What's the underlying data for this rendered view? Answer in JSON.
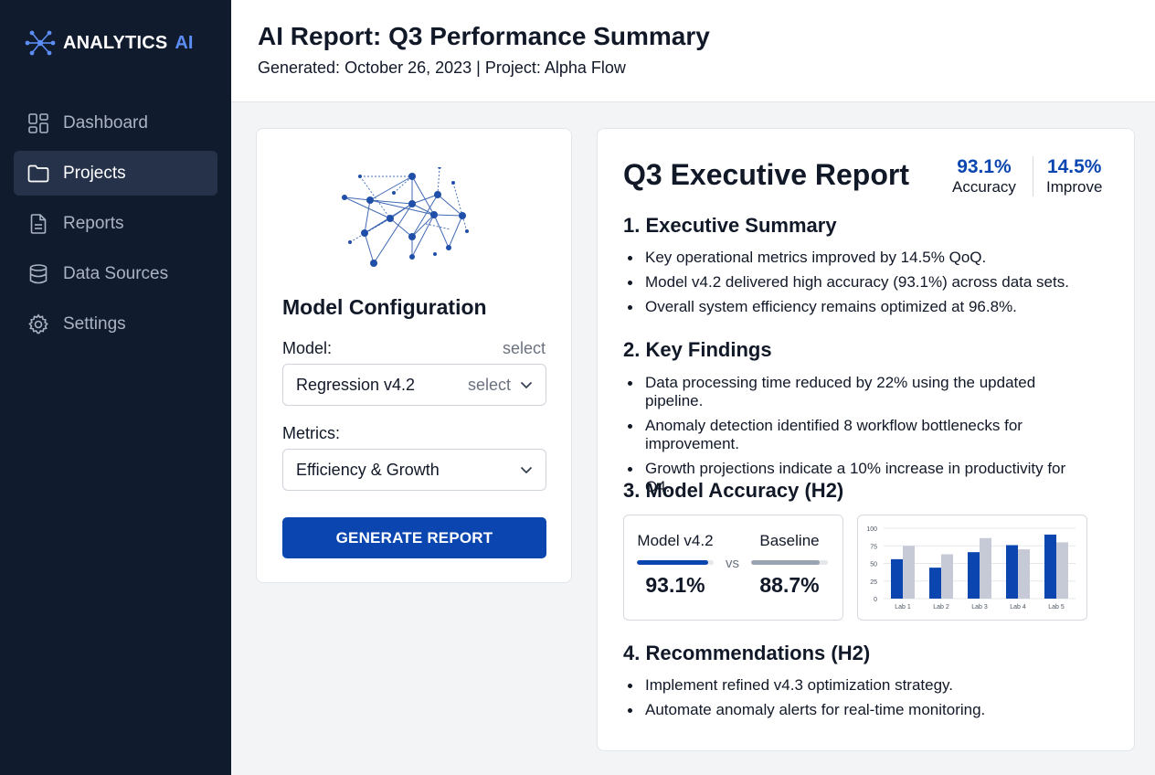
{
  "app": {
    "logo_text": "ANALYTICS",
    "logo_accent": "AI"
  },
  "sidebar": {
    "items": [
      {
        "label": "Dashboard",
        "icon": "dashboard-grid-icon",
        "active": false
      },
      {
        "label": "Projects",
        "icon": "folder-icon",
        "active": true
      },
      {
        "label": "Reports",
        "icon": "document-icon",
        "active": false
      },
      {
        "label": "Data Sources",
        "icon": "database-icon",
        "active": false
      },
      {
        "label": "Settings",
        "icon": "gear-icon",
        "active": false
      }
    ]
  },
  "header": {
    "title": "AI Report: Q3 Performance Summary",
    "subtitle": "Generated: October 26, 2023 | Project: Alpha Flow"
  },
  "config": {
    "title": "Model Configuration",
    "model_label": "Model:",
    "model_hint": "select",
    "model_value": "Regression v4.2",
    "model_select_hint": "select",
    "metrics_label": "Metrics:",
    "metrics_value": "Efficiency & Growth",
    "generate_label": "GENERATE REPORT"
  },
  "report": {
    "title": "Q3 Executive Report",
    "kpis": [
      {
        "value": "93.1%",
        "label": "Accuracy"
      },
      {
        "value": "14.5%",
        "label": "Improve"
      }
    ],
    "sections": {
      "summary_heading": "1. Executive Summary",
      "summary_items": [
        "Key operational metrics improved by 14.5% QoQ.",
        "Model v4.2 delivered high accuracy (93.1%) across data sets.",
        "Overall system efficiency remains optimized at 96.8%."
      ],
      "findings_heading": "2. Key Findings",
      "findings_items": [
        "Data processing time reduced by 22% using the updated pipeline.",
        "Anomaly detection identified 8 workflow bottlenecks for improvement.",
        "Growth projections indicate a 10% increase in productivity for Q4."
      ],
      "accuracy_heading": "3. Model Accuracy (H2)",
      "recommendations_heading": "4. Recommendations (H2)",
      "recommendations_items": [
        "Implement refined v4.3 optimization strategy.",
        "Automate anomaly alerts for real-time monitoring."
      ]
    },
    "accuracy_compare": {
      "model_name": "Model v4.2",
      "model_value": "93.1%",
      "model_fraction": 0.931,
      "baseline_name": "Baseline",
      "baseline_value": "88.7%",
      "baseline_fraction": 0.887,
      "vs_label": "vs"
    }
  },
  "colors": {
    "primary": "#0b46b0",
    "secondary": "#c6cad6",
    "sidebar_bg": "#111b2e"
  },
  "chart_data": {
    "type": "bar",
    "categories": [
      "Lab 1",
      "Lab 2",
      "Lab 3",
      "Lab 4",
      "Lab 5"
    ],
    "series": [
      {
        "values": [
          56,
          44,
          66,
          76,
          91
        ]
      },
      {
        "values": [
          75,
          63,
          86,
          70,
          80
        ]
      }
    ],
    "yticks": [
      0,
      25,
      50,
      75,
      100
    ],
    "ylim": [
      0,
      100
    ],
    "grid": true,
    "legend": "none"
  }
}
